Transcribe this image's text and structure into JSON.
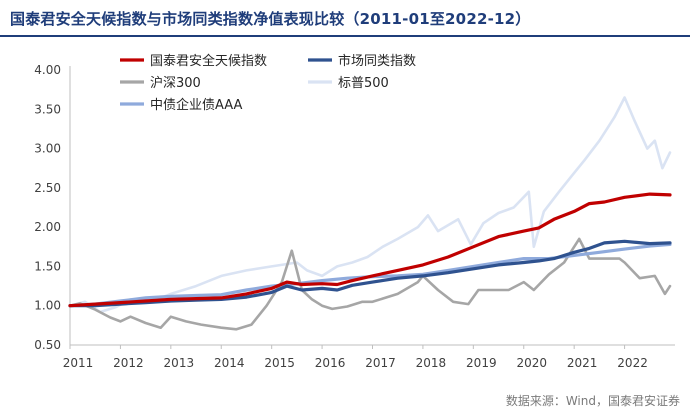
{
  "title": "国泰君安全天候指数与市场同类指数净值表现比较（2011-01至2022-12）",
  "source": "数据来源：Wind，国泰君安证券",
  "chart_data": {
    "type": "line",
    "title": "国泰君安全天候指数与市场同类指数净值表现比较（2011-01至2022-12）",
    "xlabel": "",
    "ylabel": "",
    "xlim": [
      2011,
      2023
    ],
    "ylim": [
      0.5,
      4.0
    ],
    "yticks": [
      "4.00",
      "3.50",
      "3.00",
      "2.50",
      "2.00",
      "1.50",
      "1.00",
      "0.50"
    ],
    "xticks": [
      "2011",
      "2012",
      "2013",
      "2014",
      "2015",
      "2016",
      "2017",
      "2018",
      "2019",
      "2020",
      "2021",
      "2022"
    ],
    "grid": false,
    "legend_position": "top-left",
    "series": [
      {
        "name": "国泰君安全天候指数",
        "color": "#c00000",
        "points": [
          [
            2011.0,
            1.0
          ],
          [
            2011.5,
            1.02
          ],
          [
            2012.0,
            1.04
          ],
          [
            2012.5,
            1.06
          ],
          [
            2013.0,
            1.08
          ],
          [
            2013.5,
            1.09
          ],
          [
            2014.0,
            1.1
          ],
          [
            2014.5,
            1.15
          ],
          [
            2015.0,
            1.22
          ],
          [
            2015.3,
            1.3
          ],
          [
            2015.6,
            1.27
          ],
          [
            2016.0,
            1.28
          ],
          [
            2016.3,
            1.27
          ],
          [
            2016.6,
            1.32
          ],
          [
            2017.0,
            1.38
          ],
          [
            2017.5,
            1.45
          ],
          [
            2018.0,
            1.52
          ],
          [
            2018.5,
            1.62
          ],
          [
            2019.0,
            1.75
          ],
          [
            2019.5,
            1.88
          ],
          [
            2020.0,
            1.95
          ],
          [
            2020.3,
            1.99
          ],
          [
            2020.6,
            2.1
          ],
          [
            2021.0,
            2.2
          ],
          [
            2021.3,
            2.3
          ],
          [
            2021.6,
            2.32
          ],
          [
            2022.0,
            2.38
          ],
          [
            2022.5,
            2.42
          ],
          [
            2022.9,
            2.41
          ]
        ]
      },
      {
        "name": "市场同类指数",
        "color": "#2f528f",
        "points": [
          [
            2011.0,
            1.0
          ],
          [
            2011.5,
            1.0
          ],
          [
            2012.0,
            1.02
          ],
          [
            2012.5,
            1.04
          ],
          [
            2013.0,
            1.06
          ],
          [
            2013.5,
            1.07
          ],
          [
            2014.0,
            1.08
          ],
          [
            2014.5,
            1.11
          ],
          [
            2015.0,
            1.17
          ],
          [
            2015.3,
            1.25
          ],
          [
            2015.6,
            1.2
          ],
          [
            2016.0,
            1.22
          ],
          [
            2016.3,
            1.2
          ],
          [
            2016.6,
            1.26
          ],
          [
            2017.0,
            1.3
          ],
          [
            2017.5,
            1.35
          ],
          [
            2018.0,
            1.38
          ],
          [
            2018.5,
            1.42
          ],
          [
            2019.0,
            1.47
          ],
          [
            2019.5,
            1.52
          ],
          [
            2020.0,
            1.55
          ],
          [
            2020.3,
            1.57
          ],
          [
            2020.6,
            1.6
          ],
          [
            2021.0,
            1.68
          ],
          [
            2021.3,
            1.73
          ],
          [
            2021.6,
            1.8
          ],
          [
            2022.0,
            1.82
          ],
          [
            2022.5,
            1.79
          ],
          [
            2022.9,
            1.8
          ]
        ]
      },
      {
        "name": "沪深300",
        "color": "#a6a6a6",
        "points": [
          [
            2011.0,
            1.0
          ],
          [
            2011.2,
            1.03
          ],
          [
            2011.5,
            0.95
          ],
          [
            2011.8,
            0.85
          ],
          [
            2012.0,
            0.8
          ],
          [
            2012.2,
            0.86
          ],
          [
            2012.5,
            0.78
          ],
          [
            2012.8,
            0.72
          ],
          [
            2013.0,
            0.86
          ],
          [
            2013.3,
            0.8
          ],
          [
            2013.6,
            0.76
          ],
          [
            2014.0,
            0.72
          ],
          [
            2014.3,
            0.7
          ],
          [
            2014.6,
            0.76
          ],
          [
            2014.9,
            1.0
          ],
          [
            2015.2,
            1.3
          ],
          [
            2015.4,
            1.7
          ],
          [
            2015.6,
            1.2
          ],
          [
            2015.8,
            1.08
          ],
          [
            2016.0,
            1.0
          ],
          [
            2016.2,
            0.96
          ],
          [
            2016.5,
            0.99
          ],
          [
            2016.8,
            1.05
          ],
          [
            2017.0,
            1.05
          ],
          [
            2017.5,
            1.15
          ],
          [
            2017.9,
            1.3
          ],
          [
            2018.0,
            1.38
          ],
          [
            2018.3,
            1.2
          ],
          [
            2018.6,
            1.05
          ],
          [
            2018.9,
            1.02
          ],
          [
            2019.1,
            1.2
          ],
          [
            2019.4,
            1.2
          ],
          [
            2019.7,
            1.2
          ],
          [
            2020.0,
            1.3
          ],
          [
            2020.2,
            1.2
          ],
          [
            2020.5,
            1.4
          ],
          [
            2020.8,
            1.55
          ],
          [
            2021.1,
            1.85
          ],
          [
            2021.3,
            1.6
          ],
          [
            2021.6,
            1.6
          ],
          [
            2021.9,
            1.6
          ],
          [
            2022.0,
            1.55
          ],
          [
            2022.3,
            1.35
          ],
          [
            2022.6,
            1.38
          ],
          [
            2022.8,
            1.15
          ],
          [
            2022.9,
            1.25
          ]
        ]
      },
      {
        "name": "标普500",
        "color": "#dae3f3",
        "points": [
          [
            2011.0,
            1.0
          ],
          [
            2011.3,
            1.05
          ],
          [
            2011.6,
            0.92
          ],
          [
            2011.9,
            0.98
          ],
          [
            2012.2,
            1.08
          ],
          [
            2012.5,
            1.05
          ],
          [
            2012.8,
            1.1
          ],
          [
            2013.0,
            1.15
          ],
          [
            2013.5,
            1.25
          ],
          [
            2014.0,
            1.38
          ],
          [
            2014.5,
            1.45
          ],
          [
            2015.0,
            1.5
          ],
          [
            2015.5,
            1.55
          ],
          [
            2015.7,
            1.45
          ],
          [
            2016.0,
            1.38
          ],
          [
            2016.3,
            1.5
          ],
          [
            2016.6,
            1.55
          ],
          [
            2016.9,
            1.62
          ],
          [
            2017.2,
            1.75
          ],
          [
            2017.5,
            1.85
          ],
          [
            2017.9,
            2.0
          ],
          [
            2018.1,
            2.15
          ],
          [
            2018.3,
            1.95
          ],
          [
            2018.7,
            2.1
          ],
          [
            2018.95,
            1.78
          ],
          [
            2019.2,
            2.05
          ],
          [
            2019.5,
            2.18
          ],
          [
            2019.8,
            2.25
          ],
          [
            2020.1,
            2.45
          ],
          [
            2020.2,
            1.75
          ],
          [
            2020.4,
            2.2
          ],
          [
            2020.7,
            2.45
          ],
          [
            2020.95,
            2.65
          ],
          [
            2021.2,
            2.85
          ],
          [
            2021.5,
            3.1
          ],
          [
            2021.8,
            3.4
          ],
          [
            2022.0,
            3.65
          ],
          [
            2022.2,
            3.35
          ],
          [
            2022.45,
            3.0
          ],
          [
            2022.6,
            3.1
          ],
          [
            2022.75,
            2.75
          ],
          [
            2022.9,
            2.95
          ]
        ]
      },
      {
        "name": "中债企业债AAA",
        "color": "#8faadc",
        "points": [
          [
            2011.0,
            1.0
          ],
          [
            2011.5,
            1.02
          ],
          [
            2012.0,
            1.06
          ],
          [
            2012.5,
            1.1
          ],
          [
            2013.0,
            1.12
          ],
          [
            2013.5,
            1.13
          ],
          [
            2014.0,
            1.14
          ],
          [
            2014.5,
            1.2
          ],
          [
            2015.0,
            1.25
          ],
          [
            2015.5,
            1.28
          ],
          [
            2016.0,
            1.32
          ],
          [
            2016.5,
            1.35
          ],
          [
            2017.0,
            1.37
          ],
          [
            2017.5,
            1.38
          ],
          [
            2018.0,
            1.4
          ],
          [
            2018.5,
            1.45
          ],
          [
            2019.0,
            1.5
          ],
          [
            2019.5,
            1.55
          ],
          [
            2020.0,
            1.6
          ],
          [
            2020.5,
            1.6
          ],
          [
            2021.0,
            1.64
          ],
          [
            2021.5,
            1.68
          ],
          [
            2022.0,
            1.72
          ],
          [
            2022.5,
            1.76
          ],
          [
            2022.9,
            1.78
          ]
        ]
      }
    ]
  }
}
